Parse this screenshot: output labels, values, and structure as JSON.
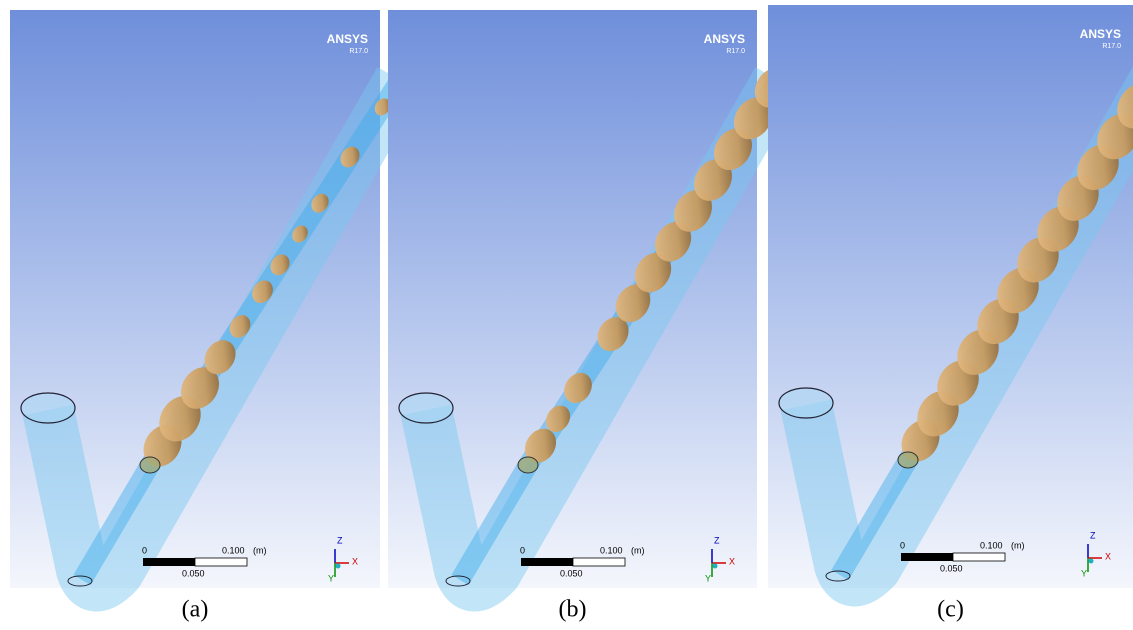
{
  "panels": [
    {
      "logo": "ANSYS",
      "version": "R17.0",
      "scale": {
        "start": "0",
        "end": "0.100",
        "unit": "(m)",
        "mid": "0.050"
      },
      "axes": {
        "z": "Z",
        "x": "X",
        "y": "Y"
      },
      "caption": "(a)"
    },
    {
      "logo": "ANSYS",
      "version": "R17.0",
      "scale": {
        "start": "0",
        "end": "0.100",
        "unit": "(m)",
        "mid": "0.050"
      },
      "axes": {
        "z": "Z",
        "x": "X",
        "y": "Y"
      },
      "caption": "(b)"
    },
    {
      "logo": "ANSYS",
      "version": "R17.0",
      "scale": {
        "start": "0",
        "end": "0.100",
        "unit": "(m)",
        "mid": "0.050"
      },
      "axes": {
        "z": "Z",
        "x": "X",
        "y": "Y"
      },
      "caption": "(c)"
    }
  ]
}
